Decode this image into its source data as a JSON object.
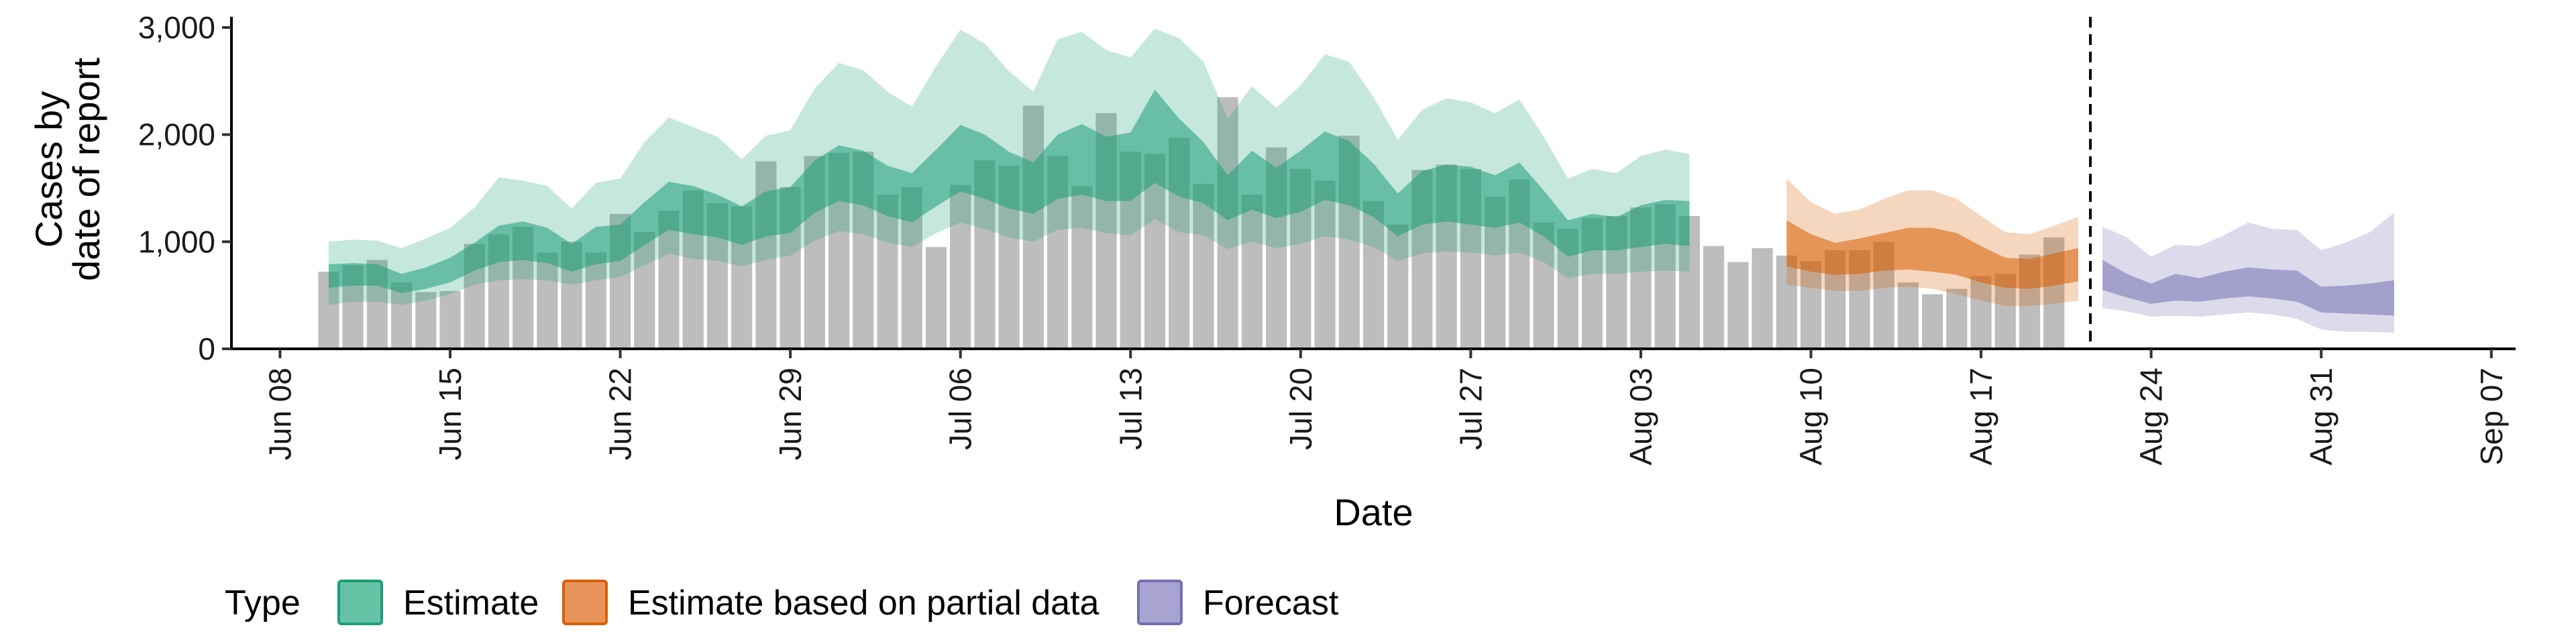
{
  "chart_data": {
    "type": "area",
    "xlabel": "Date",
    "ylabel_lines": [
      "Cases by",
      "date of report"
    ],
    "ylim": [
      0,
      3100
    ],
    "y_ticks": [
      0,
      1000,
      2000,
      3000
    ],
    "y_tick_labels": [
      "0",
      "1,000",
      "2,000",
      "3,000"
    ],
    "x_range": [
      "2020-06-06",
      "2020-09-08"
    ],
    "x_ticks": [
      "2020-06-08",
      "2020-06-15",
      "2020-06-22",
      "2020-06-29",
      "2020-07-06",
      "2020-07-13",
      "2020-07-20",
      "2020-07-27",
      "2020-08-03",
      "2020-08-10",
      "2020-08-17",
      "2020-08-24",
      "2020-08-31",
      "2020-09-07"
    ],
    "x_tick_labels": [
      "Jun 08",
      "Jun 15",
      "Jun 22",
      "Jun 29",
      "Jul 06",
      "Jul 13",
      "Jul 20",
      "Jul 27",
      "Aug 03",
      "Aug 10",
      "Aug 17",
      "Aug 24",
      "Aug 31",
      "Sep 07"
    ],
    "forecast_cutoff": "2020-08-21",
    "grid": false,
    "legend": {
      "title": "Type",
      "position": "bottom",
      "entries": [
        {
          "label": "Estimate",
          "fill": "#66c2a5",
          "stroke": "#1b9e77"
        },
        {
          "label": "Estimate based on partial data",
          "fill": "#e8935a",
          "stroke": "#d95f02"
        },
        {
          "label": "Forecast",
          "fill": "#a9a3d1",
          "stroke": "#7570b3"
        }
      ]
    },
    "colors": {
      "bars": "#bdbdbd",
      "estimate": "#1b9e77",
      "partial": "#d95f02",
      "forecast": "#7570b3",
      "cutoff_line": "#000000"
    },
    "reported_cases": {
      "start": "2020-06-10",
      "values": [
        720,
        780,
        830,
        620,
        530,
        540,
        980,
        1070,
        1140,
        900,
        1000,
        900,
        1260,
        1090,
        1290,
        1480,
        1360,
        1330,
        1750,
        1510,
        1800,
        1830,
        1840,
        1440,
        1510,
        950,
        1530,
        1760,
        1710,
        2270,
        1800,
        1520,
        2200,
        1840,
        1820,
        1970,
        1540,
        2350,
        1440,
        1880,
        1680,
        1570,
        1990,
        1380,
        1160,
        1670,
        1720,
        1680,
        1420,
        1580,
        1180,
        1120,
        1220,
        1240,
        1320,
        1350,
        1240,
        960,
        810,
        940,
        870,
        820,
        920,
        920,
        1000,
        620,
        510,
        560,
        680,
        700,
        880,
        1040
      ]
    },
    "series": [
      {
        "name": "Estimate",
        "start": "2020-06-10",
        "outer_upper": [
          1000,
          1020,
          1010,
          940,
          1030,
          1130,
          1320,
          1600,
          1570,
          1520,
          1310,
          1550,
          1590,
          1930,
          2160,
          2070,
          1980,
          1770,
          1990,
          2040,
          2430,
          2670,
          2600,
          2400,
          2260,
          2640,
          2980,
          2850,
          2590,
          2400,
          2890,
          2960,
          2790,
          2720,
          2990,
          2900,
          2680,
          2150,
          2450,
          2250,
          2460,
          2750,
          2680,
          2350,
          1950,
          2230,
          2340,
          2300,
          2200,
          2330,
          1980,
          1590,
          1680,
          1640,
          1800,
          1860,
          1820
        ],
        "inner_upper": [
          790,
          800,
          790,
          700,
          760,
          850,
          990,
          1150,
          1190,
          1130,
          980,
          1140,
          1160,
          1370,
          1560,
          1520,
          1440,
          1330,
          1470,
          1510,
          1760,
          1900,
          1850,
          1710,
          1640,
          1860,
          2090,
          2000,
          1840,
          1740,
          2000,
          2100,
          1980,
          2020,
          2420,
          2150,
          1930,
          1620,
          1850,
          1690,
          1850,
          2030,
          1940,
          1730,
          1450,
          1660,
          1720,
          1700,
          1620,
          1740,
          1480,
          1200,
          1260,
          1230,
          1340,
          1390,
          1380
        ],
        "inner_lower": [
          570,
          590,
          590,
          520,
          560,
          620,
          730,
          810,
          830,
          800,
          720,
          790,
          820,
          970,
          1110,
          1070,
          1040,
          970,
          1050,
          1080,
          1270,
          1380,
          1340,
          1240,
          1180,
          1330,
          1470,
          1400,
          1310,
          1260,
          1400,
          1440,
          1380,
          1380,
          1550,
          1420,
          1360,
          1200,
          1300,
          1220,
          1280,
          1390,
          1340,
          1230,
          1050,
          1160,
          1190,
          1160,
          1130,
          1180,
          1050,
          860,
          920,
          920,
          950,
          980,
          960
        ],
        "outer_lower": [
          410,
          440,
          440,
          410,
          450,
          510,
          600,
          640,
          650,
          640,
          600,
          640,
          670,
          780,
          890,
          840,
          820,
          770,
          830,
          870,
          1010,
          1100,
          1070,
          990,
          950,
          1080,
          1180,
          1120,
          1040,
          1000,
          1110,
          1130,
          1080,
          1060,
          1210,
          1090,
          1060,
          930,
          1000,
          940,
          980,
          1050,
          1020,
          950,
          820,
          890,
          910,
          900,
          870,
          900,
          810,
          660,
          700,
          700,
          720,
          730,
          720
        ]
      },
      {
        "name": "Estimate based on partial data",
        "start": "2020-08-09",
        "outer_upper": [
          1590,
          1370,
          1260,
          1300,
          1400,
          1480,
          1480,
          1400,
          1240,
          1090,
          1070,
          1150,
          1230
        ],
        "inner_upper": [
          1200,
          1070,
          990,
          1030,
          1080,
          1130,
          1130,
          1080,
          960,
          850,
          840,
          890,
          940
        ],
        "inner_lower": [
          770,
          720,
          690,
          700,
          730,
          740,
          720,
          690,
          620,
          570,
          560,
          590,
          630
        ],
        "outer_lower": [
          600,
          570,
          540,
          540,
          570,
          580,
          560,
          510,
          450,
          400,
          400,
          420,
          450
        ]
      },
      {
        "name": "Forecast",
        "start": "2020-08-22",
        "outer_upper": [
          1140,
          1040,
          860,
          970,
          960,
          1060,
          1180,
          1120,
          1110,
          920,
          990,
          1090,
          1270
        ],
        "inner_upper": [
          830,
          700,
          610,
          700,
          660,
          720,
          760,
          740,
          730,
          580,
          590,
          610,
          640
        ],
        "inner_lower": [
          550,
          480,
          420,
          450,
          440,
          470,
          490,
          470,
          440,
          340,
          330,
          320,
          310
        ],
        "outer_lower": [
          380,
          350,
          300,
          310,
          300,
          320,
          340,
          320,
          280,
          180,
          160,
          160,
          150
        ]
      }
    ]
  }
}
